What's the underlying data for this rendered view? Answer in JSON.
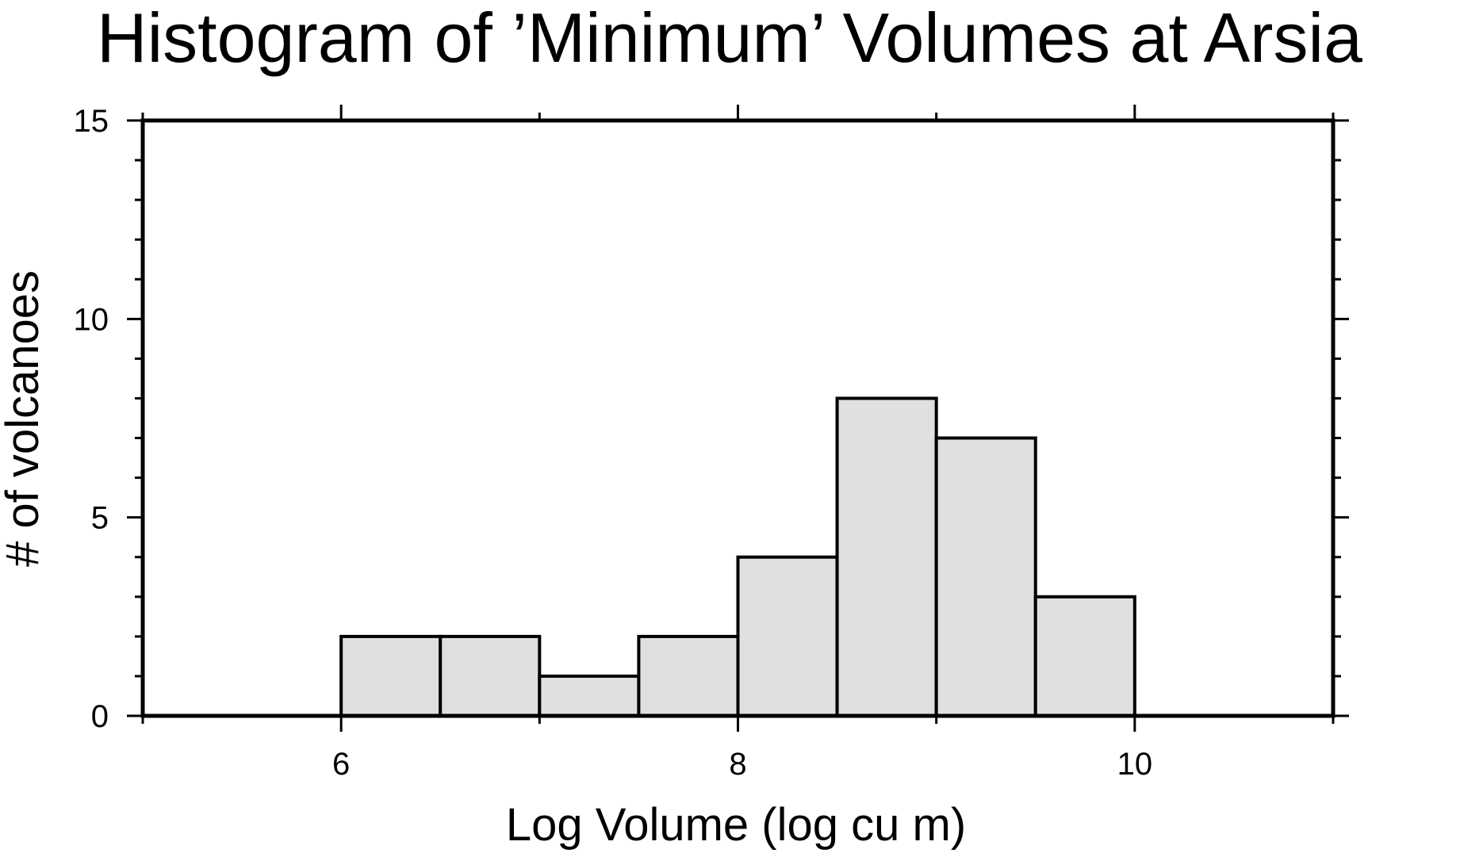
{
  "chart_data": {
    "type": "bar",
    "title": "Histogram of ’Minimum’ Volumes at Arsia",
    "xlabel": "Log Volume (log cu m)",
    "ylabel": "# of volcanoes",
    "xlim": [
      5,
      11
    ],
    "ylim": [
      0,
      15
    ],
    "x_ticks": [
      6,
      8,
      10
    ],
    "x_tick_labels": [
      "6",
      "8",
      "10"
    ],
    "y_ticks": [
      0,
      5,
      10,
      15
    ],
    "y_tick_labels": [
      "0",
      "5",
      "10",
      "15"
    ],
    "bin_width": 0.5,
    "bins": [
      {
        "start": 6.0,
        "end": 6.5,
        "count": 2
      },
      {
        "start": 6.5,
        "end": 7.0,
        "count": 2
      },
      {
        "start": 7.0,
        "end": 7.5,
        "count": 1
      },
      {
        "start": 7.5,
        "end": 8.0,
        "count": 2
      },
      {
        "start": 8.0,
        "end": 8.5,
        "count": 4
      },
      {
        "start": 8.5,
        "end": 9.0,
        "count": 8
      },
      {
        "start": 9.0,
        "end": 9.5,
        "count": 7
      },
      {
        "start": 9.5,
        "end": 10.0,
        "count": 3
      }
    ],
    "bar_color": "#e0e0e0",
    "edge_color": "#000000",
    "grid": false
  }
}
